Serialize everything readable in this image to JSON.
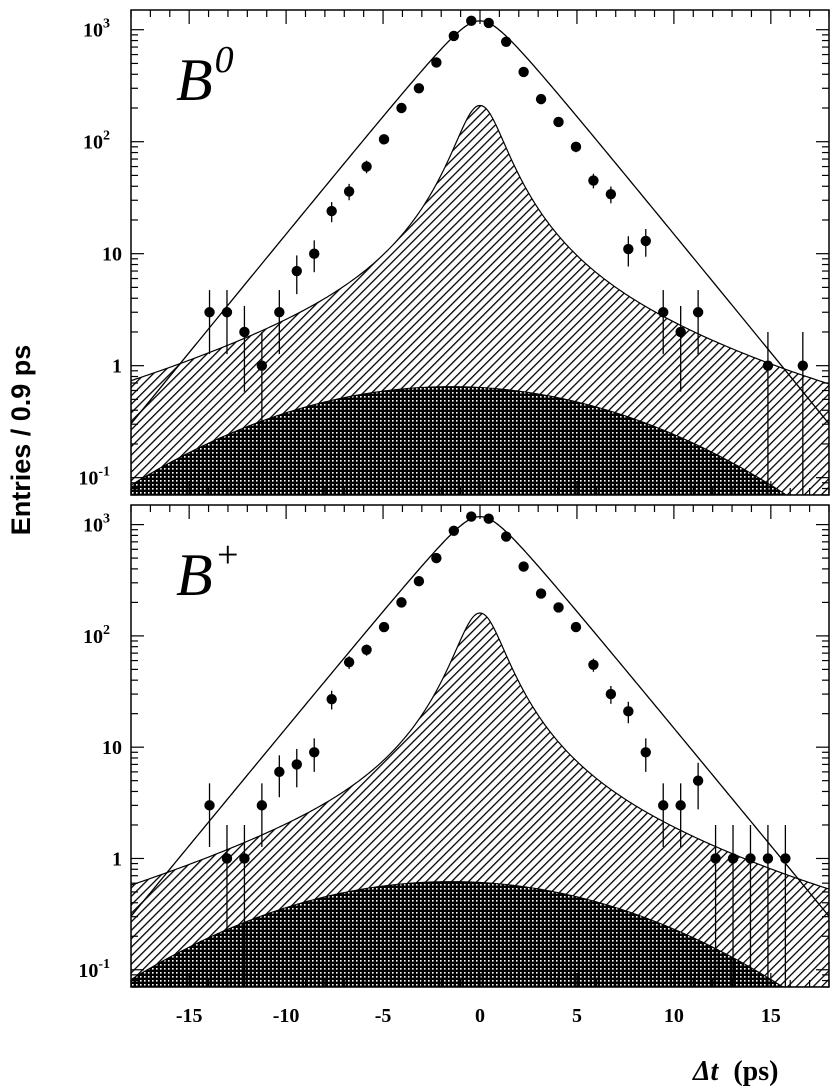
{
  "figure": {
    "ylabel": "Entries / 0.9 ps",
    "xlabel_symbol": "Δt",
    "xlabel_unit": "(ps)",
    "ytick_labels": [
      {
        "base": "10",
        "exp": "-1",
        "value": 0.1
      },
      {
        "base": "1",
        "exp": "",
        "value": 1
      },
      {
        "base": "10",
        "exp": "",
        "value": 10
      },
      {
        "base": "10",
        "exp": "2",
        "value": 100
      },
      {
        "base": "10",
        "exp": "3",
        "value": 1000
      }
    ],
    "xtick_labels": [
      "-15",
      "-10",
      "-5",
      "0",
      "5",
      "10",
      "15"
    ],
    "colors": {
      "ink": "#000000",
      "background": "#ffffff"
    }
  },
  "chart_data": [
    {
      "type": "scatter",
      "panel_label": "B",
      "panel_label_sup": "0",
      "x_range": [
        -18,
        18
      ],
      "y_range": [
        0.07,
        1500
      ],
      "y_scale": "log",
      "x_ticks": [
        -15,
        -10,
        -5,
        0,
        5,
        10,
        15
      ],
      "series": [
        {
          "kind": "data-points-with-errors",
          "x": [
            -13.95,
            -13.05,
            -12.15,
            -11.25,
            -10.35,
            -9.45,
            -8.55,
            -7.65,
            -6.75,
            -5.85,
            -4.95,
            -4.05,
            -3.15,
            -2.25,
            -1.35,
            -0.45,
            0.45,
            1.35,
            2.25,
            3.15,
            4.05,
            4.95,
            5.85,
            6.75,
            7.65,
            8.55,
            9.45,
            10.35,
            11.25,
            14.85,
            16.65
          ],
          "y": [
            3,
            3,
            2,
            1,
            3,
            7,
            10,
            24,
            36,
            60,
            105,
            200,
            300,
            510,
            880,
            1200,
            1150,
            780,
            420,
            240,
            150,
            90,
            45,
            34,
            11,
            13,
            3,
            2,
            3,
            1,
            1
          ]
        },
        {
          "kind": "fit-curve",
          "peak": 1200,
          "tail_at_x_plus_minus_18": 0.18
        },
        {
          "kind": "hatched-peaked-component",
          "peak": 210
        },
        {
          "kind": "cross-hatched-broad-component",
          "peak": 0.65
        }
      ]
    },
    {
      "type": "scatter",
      "panel_label": "B",
      "panel_label_sup": "+",
      "x_range": [
        -18,
        18
      ],
      "y_range": [
        0.07,
        1500
      ],
      "y_scale": "log",
      "x_ticks": [
        -15,
        -10,
        -5,
        0,
        5,
        10,
        15
      ],
      "series": [
        {
          "kind": "data-points-with-errors",
          "x": [
            -13.95,
            -13.05,
            -12.15,
            -11.25,
            -10.35,
            -9.45,
            -8.55,
            -7.65,
            -6.75,
            -5.85,
            -4.95,
            -4.05,
            -3.15,
            -2.25,
            -1.35,
            -0.45,
            0.45,
            1.35,
            2.25,
            3.15,
            4.05,
            4.95,
            5.85,
            6.75,
            7.65,
            8.55,
            9.45,
            10.35,
            11.25,
            12.15,
            13.05,
            13.95,
            14.85,
            15.75
          ],
          "y": [
            3,
            1,
            1,
            3,
            6,
            7,
            9,
            27,
            58,
            75,
            120,
            200,
            310,
            500,
            880,
            1180,
            1130,
            780,
            420,
            240,
            180,
            120,
            55,
            30,
            21,
            9,
            3,
            3,
            5,
            1,
            1,
            1,
            1,
            1
          ]
        },
        {
          "kind": "fit-curve",
          "peak": 1180,
          "tail_at_x_plus_minus_18": 0.18
        },
        {
          "kind": "hatched-peaked-component",
          "peak": 160
        },
        {
          "kind": "cross-hatched-broad-component",
          "peak": 0.62
        }
      ]
    }
  ]
}
